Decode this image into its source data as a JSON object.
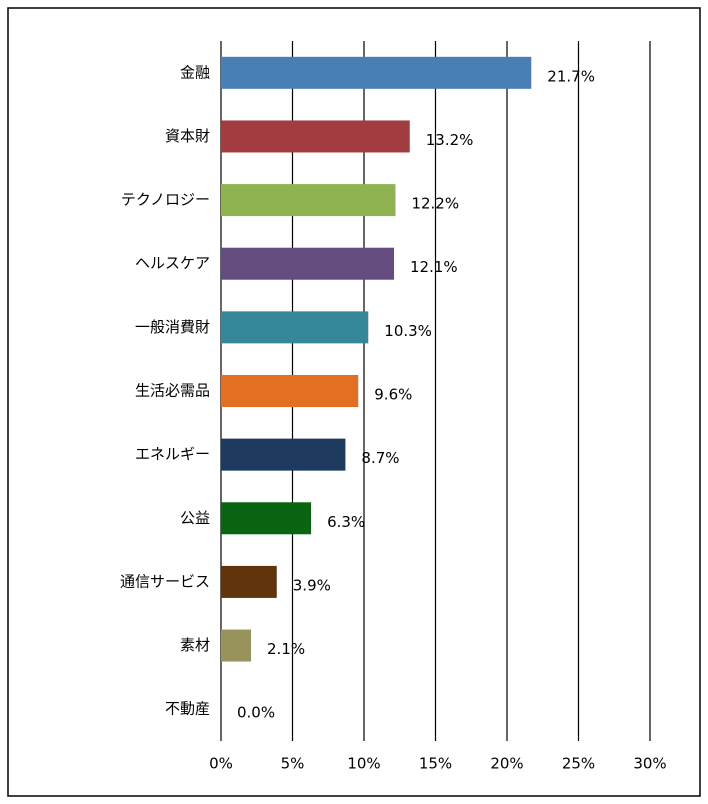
{
  "chart_data": {
    "type": "bar",
    "orientation": "horizontal",
    "categories": [
      "金融",
      "資本財",
      "テクノロジー",
      "ヘルスケア",
      "一般消費財",
      "生活必需品",
      "エネルギー",
      "公益",
      "通信サービス",
      "素材",
      "不動産"
    ],
    "values": [
      21.7,
      13.2,
      12.2,
      12.1,
      10.3,
      9.6,
      8.7,
      6.3,
      3.9,
      2.1,
      0.0
    ],
    "value_labels": [
      "21.7%",
      "13.2%",
      "12.2%",
      "12.1%",
      "10.3%",
      "9.6%",
      "8.7%",
      "6.3%",
      "3.9%",
      "2.1%",
      "0.0%"
    ],
    "colors": [
      "#4a7fb5",
      "#a33c40",
      "#8fb350",
      "#644d7e",
      "#37879b",
      "#e37022",
      "#1f3a5f",
      "#0a6512",
      "#62340b",
      "#98935a",
      "#888888"
    ],
    "xlim": [
      0,
      30
    ],
    "xticks": [
      {
        "value": 0,
        "label": "0%"
      },
      {
        "value": 5,
        "label": "5%"
      },
      {
        "value": 10,
        "label": "10%"
      },
      {
        "value": 15,
        "label": "15%"
      },
      {
        "value": 20,
        "label": "20%"
      },
      {
        "value": 25,
        "label": "25%"
      },
      {
        "value": 30,
        "label": "30%"
      }
    ],
    "grid": true
  }
}
